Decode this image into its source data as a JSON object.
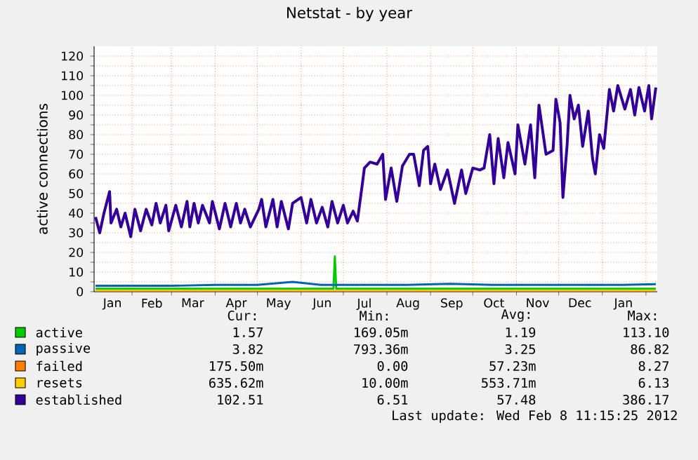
{
  "chart_data": {
    "type": "line",
    "title": "Netstat - by year",
    "ylabel": "active connections",
    "xlim": [
      "2011-01-05",
      "2012-02-09"
    ],
    "ylim": [
      0,
      125
    ],
    "xticks": [
      {
        "value": "2011-01-18",
        "label": "Jan"
      },
      {
        "value": "2011-02-15",
        "label": "Feb"
      },
      {
        "value": "2011-03-16",
        "label": "Mar"
      },
      {
        "value": "2011-04-16",
        "label": "Apr"
      },
      {
        "value": "2011-05-16",
        "label": "May"
      },
      {
        "value": "2011-06-16",
        "label": "Jun"
      },
      {
        "value": "2011-07-16",
        "label": "Jul"
      },
      {
        "value": "2011-08-16",
        "label": "Aug"
      },
      {
        "value": "2011-09-16",
        "label": "Sep"
      },
      {
        "value": "2011-10-16",
        "label": "Oct"
      },
      {
        "value": "2011-11-16",
        "label": "Nov"
      },
      {
        "value": "2011-12-16",
        "label": "Dec"
      },
      {
        "value": "2012-01-16",
        "label": "Jan"
      },
      {
        "value": "2011-02-01",
        "label": null
      },
      {
        "value": "2011-03-01",
        "label": null
      },
      {
        "value": "2011-04-01",
        "label": null
      },
      {
        "value": "2011-05-01",
        "label": null
      },
      {
        "value": "2011-06-01",
        "label": null
      },
      {
        "value": "2011-07-01",
        "label": null
      },
      {
        "value": "2011-08-01",
        "label": null
      },
      {
        "value": "2011-09-01",
        "label": null
      },
      {
        "value": "2011-10-01",
        "label": null
      },
      {
        "value": "2011-11-01",
        "label": null
      },
      {
        "value": "2011-12-01",
        "label": null
      },
      {
        "value": "2012-01-01",
        "label": null
      },
      {
        "value": "2012-02-01",
        "label": null
      }
    ],
    "yticks": [
      0,
      10,
      20,
      30,
      40,
      50,
      60,
      70,
      80,
      90,
      100,
      110,
      120,
      {
        "value": 5,
        "label": null
      },
      {
        "value": 15,
        "label": null
      },
      {
        "value": 25,
        "label": null
      },
      {
        "value": 35,
        "label": null
      },
      {
        "value": 45,
        "label": null
      },
      {
        "value": 55,
        "label": null
      },
      {
        "value": 65,
        "label": null
      },
      {
        "value": 75,
        "label": null
      },
      {
        "value": 85,
        "label": null
      },
      {
        "value": 95,
        "label": null
      },
      {
        "value": 105,
        "label": null
      },
      {
        "value": 115,
        "label": null
      }
    ],
    "grid": true,
    "legend": "bottom",
    "series": [
      {
        "name": "active",
        "color": "#00cc00",
        "x": [
          "2011-01-06",
          "2011-03-01",
          "2011-05-01",
          "2011-06-24",
          "2011-06-25",
          "2011-06-26",
          "2011-08-01",
          "2011-10-01",
          "2011-12-01",
          "2012-02-08"
        ],
        "values": [
          1.5,
          1.5,
          1.5,
          1.5,
          18,
          1.5,
          1.5,
          1.5,
          1.5,
          1.5
        ]
      },
      {
        "name": "passive",
        "color": "#0066b3",
        "x": [
          "2011-01-06",
          "2011-02-01",
          "2011-03-01",
          "2011-04-01",
          "2011-05-01",
          "2011-05-26",
          "2011-06-15",
          "2011-07-15",
          "2011-08-15",
          "2011-09-15",
          "2011-10-15",
          "2011-11-15",
          "2011-12-15",
          "2012-01-15",
          "2012-02-08"
        ],
        "values": [
          3,
          3,
          3,
          3.5,
          3.5,
          5,
          3.5,
          3.5,
          3.5,
          4,
          3.5,
          3.5,
          3.5,
          3.5,
          3.8
        ]
      },
      {
        "name": "failed",
        "color": "#ff8000",
        "x": [
          "2011-01-06",
          "2011-07-01",
          "2012-02-08"
        ],
        "values": [
          0.2,
          0.2,
          0.2
        ]
      },
      {
        "name": "resets",
        "color": "#ffcc00",
        "x": [
          "2011-01-06",
          "2011-07-01",
          "2012-02-08"
        ],
        "values": [
          0.6,
          0.6,
          0.6
        ]
      },
      {
        "name": "established",
        "color": "#330099",
        "x": [
          "2011-01-06",
          "2011-01-09",
          "2011-01-12",
          "2011-01-16",
          "2011-01-17",
          "2011-01-21",
          "2011-01-24",
          "2011-01-27",
          "2011-01-31",
          "2011-02-03",
          "2011-02-07",
          "2011-02-11",
          "2011-02-15",
          "2011-02-18",
          "2011-02-21",
          "2011-02-25",
          "2011-02-27",
          "2011-03-04",
          "2011-03-08",
          "2011-03-12",
          "2011-03-14",
          "2011-03-17",
          "2011-03-20",
          "2011-03-23",
          "2011-03-28",
          "2011-03-30",
          "2011-04-04",
          "2011-04-08",
          "2011-04-12",
          "2011-04-16",
          "2011-04-19",
          "2011-04-22",
          "2011-04-26",
          "2011-05-02",
          "2011-05-04",
          "2011-05-07",
          "2011-05-12",
          "2011-05-15",
          "2011-05-18",
          "2011-05-23",
          "2011-05-26",
          "2011-06-01",
          "2011-06-05",
          "2011-06-08",
          "2011-06-12",
          "2011-06-16",
          "2011-06-20",
          "2011-06-23",
          "2011-06-27",
          "2011-07-01",
          "2011-07-04",
          "2011-07-08",
          "2011-07-11",
          "2011-07-14",
          "2011-07-16",
          "2011-07-20",
          "2011-07-25",
          "2011-07-29",
          "2011-07-31",
          "2011-08-04",
          "2011-08-08",
          "2011-08-12",
          "2011-08-17",
          "2011-08-20",
          "2011-08-24",
          "2011-08-27",
          "2011-08-30",
          "2011-09-01",
          "2011-09-04",
          "2011-09-08",
          "2011-09-13",
          "2011-09-18",
          "2011-09-23",
          "2011-09-26",
          "2011-10-01",
          "2011-10-06",
          "2011-10-09",
          "2011-10-13",
          "2011-10-16",
          "2011-10-19",
          "2011-10-23",
          "2011-10-26",
          "2011-10-31",
          "2011-11-02",
          "2011-11-07",
          "2011-11-11",
          "2011-11-14",
          "2011-11-17",
          "2011-11-22",
          "2011-11-27",
          "2011-11-29",
          "2011-12-02",
          "2011-12-04",
          "2011-12-07",
          "2011-12-09",
          "2011-12-12",
          "2011-12-15",
          "2011-12-18",
          "2011-12-22",
          "2011-12-25",
          "2011-12-27",
          "2011-12-30",
          "2012-01-02",
          "2012-01-06",
          "2012-01-09",
          "2012-01-12",
          "2012-01-17",
          "2012-01-21",
          "2012-01-24",
          "2012-01-27",
          "2012-01-31",
          "2012-02-03",
          "2012-02-05",
          "2012-02-08"
        ],
        "values": [
          38,
          30,
          40,
          51,
          35,
          42,
          33,
          40,
          28,
          42,
          31,
          42,
          34,
          45,
          35,
          44,
          31,
          44,
          33,
          46,
          33,
          45,
          35,
          44,
          35,
          46,
          32,
          45,
          33,
          45,
          35,
          42,
          33,
          42,
          47,
          33,
          47,
          33,
          46,
          32,
          45,
          48,
          35,
          47,
          35,
          43,
          33,
          46,
          35,
          44,
          35,
          41,
          36,
          52,
          63,
          66,
          65,
          70,
          47,
          63,
          46,
          64,
          70,
          70,
          54,
          72,
          74,
          55,
          65,
          52,
          62,
          45,
          62,
          50,
          63,
          62,
          63,
          80,
          55,
          78,
          58,
          76,
          60,
          85,
          65,
          85,
          58,
          95,
          70,
          72,
          98,
          86,
          48,
          75,
          100,
          88,
          95,
          74,
          92,
          68,
          60,
          80,
          73,
          103,
          92,
          105,
          93,
          103,
          90,
          104,
          92,
          105,
          88,
          104
        ]
      }
    ],
    "annotations": [
      "Cur:",
      "Min:",
      "Avg:",
      "Max:",
      "1.57",
      "169.05m",
      "1.19",
      "113.10",
      "3.82",
      "793.36m",
      "3.25",
      "86.82",
      "175.50m",
      "0.00",
      "57.23m",
      "8.27",
      "635.62m",
      "10.00m",
      "553.71m",
      "6.13",
      "102.51",
      "6.51",
      "57.48",
      "386.17",
      "Last update: Wed Feb 8 11:15:25 2012"
    ]
  }
}
